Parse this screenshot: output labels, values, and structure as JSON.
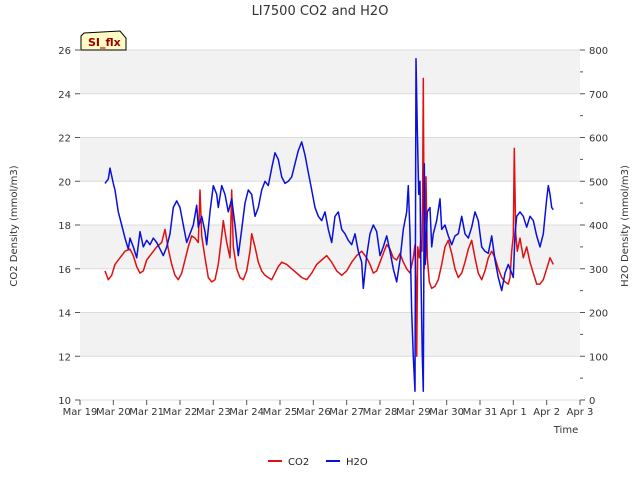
{
  "chart_data": {
    "type": "line",
    "title": "LI7500 CO2 and H2O",
    "xlabel": "Time",
    "ylabel_left": "CO2 Density (mmol/m3)",
    "ylabel_right": "H2O Density (mmol/m3)",
    "xlim": [
      0,
      15
    ],
    "ylim_left": [
      10,
      26
    ],
    "ylim_right": [
      0,
      800
    ],
    "x_ticks": [
      {
        "x": 0,
        "label": "Mar 19"
      },
      {
        "x": 1,
        "label": "Mar 20"
      },
      {
        "x": 2,
        "label": "Mar 21"
      },
      {
        "x": 3,
        "label": "Mar 22"
      },
      {
        "x": 4,
        "label": "Mar 23"
      },
      {
        "x": 5,
        "label": "Mar 24"
      },
      {
        "x": 6,
        "label": "Mar 25"
      },
      {
        "x": 7,
        "label": "Mar 26"
      },
      {
        "x": 8,
        "label": "Mar 27"
      },
      {
        "x": 9,
        "label": "Mar 28"
      },
      {
        "x": 10,
        "label": "Mar 29"
      },
      {
        "x": 11,
        "label": "Mar 30"
      },
      {
        "x": 12,
        "label": "Mar 31"
      },
      {
        "x": 13,
        "label": "Apr 1"
      },
      {
        "x": 14,
        "label": "Apr 2"
      },
      {
        "x": 15,
        "label": "Apr 3"
      }
    ],
    "y_ticks_left": [
      "10",
      "12",
      "14",
      "16",
      "18",
      "20",
      "22",
      "24",
      "26"
    ],
    "y_ticks_right": [
      "0",
      "100",
      "200",
      "300",
      "400",
      "500",
      "600",
      "700",
      "800"
    ],
    "grid": "horizontal bands",
    "legend_position": "bottom-center",
    "badge": "SI_flx",
    "series": [
      {
        "name": "CO2",
        "axis": "left",
        "color": "#e01010",
        "points": [
          [
            0.75,
            15.9
          ],
          [
            0.85,
            15.5
          ],
          [
            0.95,
            15.7
          ],
          [
            1.05,
            16.2
          ],
          [
            1.2,
            16.5
          ],
          [
            1.35,
            16.8
          ],
          [
            1.5,
            16.9
          ],
          [
            1.6,
            16.6
          ],
          [
            1.7,
            16.1
          ],
          [
            1.8,
            15.8
          ],
          [
            1.9,
            15.9
          ],
          [
            2.0,
            16.4
          ],
          [
            2.15,
            16.7
          ],
          [
            2.3,
            17.0
          ],
          [
            2.45,
            17.2
          ],
          [
            2.55,
            17.8
          ],
          [
            2.65,
            16.9
          ],
          [
            2.75,
            16.2
          ],
          [
            2.85,
            15.7
          ],
          [
            2.95,
            15.5
          ],
          [
            3.05,
            15.8
          ],
          [
            3.15,
            16.4
          ],
          [
            3.25,
            17.0
          ],
          [
            3.35,
            17.5
          ],
          [
            3.45,
            17.4
          ],
          [
            3.55,
            17.2
          ],
          [
            3.6,
            19.6
          ],
          [
            3.65,
            17.5
          ],
          [
            3.75,
            16.5
          ],
          [
            3.85,
            15.6
          ],
          [
            3.95,
            15.4
          ],
          [
            4.05,
            15.5
          ],
          [
            4.15,
            16.2
          ],
          [
            4.25,
            17.5
          ],
          [
            4.3,
            18.2
          ],
          [
            4.4,
            17.2
          ],
          [
            4.5,
            16.5
          ],
          [
            4.55,
            19.6
          ],
          [
            4.6,
            17.0
          ],
          [
            4.7,
            16.0
          ],
          [
            4.8,
            15.6
          ],
          [
            4.9,
            15.5
          ],
          [
            5.0,
            15.9
          ],
          [
            5.1,
            16.8
          ],
          [
            5.15,
            17.6
          ],
          [
            5.25,
            17.0
          ],
          [
            5.35,
            16.3
          ],
          [
            5.45,
            15.9
          ],
          [
            5.55,
            15.7
          ],
          [
            5.65,
            15.6
          ],
          [
            5.75,
            15.5
          ],
          [
            5.85,
            15.8
          ],
          [
            5.95,
            16.1
          ],
          [
            6.05,
            16.3
          ],
          [
            6.2,
            16.2
          ],
          [
            6.35,
            16.0
          ],
          [
            6.5,
            15.8
          ],
          [
            6.65,
            15.6
          ],
          [
            6.8,
            15.5
          ],
          [
            6.95,
            15.8
          ],
          [
            7.1,
            16.2
          ],
          [
            7.25,
            16.4
          ],
          [
            7.4,
            16.6
          ],
          [
            7.55,
            16.3
          ],
          [
            7.7,
            15.9
          ],
          [
            7.85,
            15.7
          ],
          [
            8.0,
            15.9
          ],
          [
            8.15,
            16.3
          ],
          [
            8.3,
            16.6
          ],
          [
            8.45,
            16.8
          ],
          [
            8.6,
            16.5
          ],
          [
            8.7,
            16.2
          ],
          [
            8.8,
            15.8
          ],
          [
            8.9,
            15.9
          ],
          [
            9.0,
            16.3
          ],
          [
            9.1,
            16.7
          ],
          [
            9.2,
            17.1
          ],
          [
            9.3,
            16.9
          ],
          [
            9.4,
            16.5
          ],
          [
            9.5,
            16.4
          ],
          [
            9.6,
            16.7
          ],
          [
            9.7,
            16.3
          ],
          [
            9.8,
            16.0
          ],
          [
            9.9,
            15.8
          ],
          [
            10.0,
            16.5
          ],
          [
            10.05,
            17.1
          ],
          [
            10.08,
            15.2
          ],
          [
            10.1,
            12.0
          ],
          [
            10.13,
            17.0
          ],
          [
            10.18,
            16.5
          ],
          [
            10.22,
            17.3
          ],
          [
            10.26,
            16.8
          ],
          [
            10.28,
            19.8
          ],
          [
            10.3,
            24.7
          ],
          [
            10.33,
            16.0
          ],
          [
            10.38,
            20.2
          ],
          [
            10.42,
            16.5
          ],
          [
            10.48,
            15.4
          ],
          [
            10.55,
            15.1
          ],
          [
            10.65,
            15.2
          ],
          [
            10.75,
            15.5
          ],
          [
            10.85,
            16.2
          ],
          [
            10.95,
            17.0
          ],
          [
            11.05,
            17.3
          ],
          [
            11.15,
            16.7
          ],
          [
            11.25,
            16.0
          ],
          [
            11.35,
            15.6
          ],
          [
            11.45,
            15.8
          ],
          [
            11.55,
            16.3
          ],
          [
            11.65,
            16.9
          ],
          [
            11.75,
            17.3
          ],
          [
            11.85,
            16.5
          ],
          [
            11.95,
            15.8
          ],
          [
            12.05,
            15.5
          ],
          [
            12.15,
            15.9
          ],
          [
            12.25,
            16.5
          ],
          [
            12.35,
            16.8
          ],
          [
            12.45,
            16.5
          ],
          [
            12.55,
            16.0
          ],
          [
            12.65,
            15.6
          ],
          [
            12.75,
            15.4
          ],
          [
            12.85,
            15.3
          ],
          [
            12.9,
            15.6
          ],
          [
            12.95,
            16.8
          ],
          [
            13.0,
            17.5
          ],
          [
            13.03,
            21.5
          ],
          [
            13.07,
            17.6
          ],
          [
            13.12,
            16.8
          ],
          [
            13.2,
            17.4
          ],
          [
            13.3,
            16.5
          ],
          [
            13.4,
            17.0
          ],
          [
            13.5,
            16.3
          ],
          [
            13.6,
            15.8
          ],
          [
            13.7,
            15.3
          ],
          [
            13.8,
            15.3
          ],
          [
            13.9,
            15.5
          ],
          [
            14.0,
            16.0
          ],
          [
            14.1,
            16.5
          ],
          [
            14.2,
            16.2
          ]
        ]
      },
      {
        "name": "H2O",
        "axis": "right",
        "color": "#0a10dc",
        "points": [
          [
            0.75,
            495
          ],
          [
            0.85,
            505
          ],
          [
            0.9,
            530
          ],
          [
            1.0,
            495
          ],
          [
            1.05,
            480
          ],
          [
            1.15,
            430
          ],
          [
            1.25,
            400
          ],
          [
            1.35,
            370
          ],
          [
            1.45,
            345
          ],
          [
            1.5,
            370
          ],
          [
            1.6,
            350
          ],
          [
            1.7,
            325
          ],
          [
            1.8,
            385
          ],
          [
            1.9,
            350
          ],
          [
            2.0,
            365
          ],
          [
            2.1,
            355
          ],
          [
            2.2,
            370
          ],
          [
            2.3,
            360
          ],
          [
            2.4,
            345
          ],
          [
            2.5,
            330
          ],
          [
            2.6,
            350
          ],
          [
            2.7,
            380
          ],
          [
            2.8,
            440
          ],
          [
            2.9,
            455
          ],
          [
            3.0,
            440
          ],
          [
            3.1,
            400
          ],
          [
            3.2,
            360
          ],
          [
            3.3,
            380
          ],
          [
            3.4,
            400
          ],
          [
            3.5,
            445
          ],
          [
            3.55,
            395
          ],
          [
            3.65,
            420
          ],
          [
            3.75,
            385
          ],
          [
            3.8,
            355
          ],
          [
            3.9,
            430
          ],
          [
            4.0,
            490
          ],
          [
            4.1,
            470
          ],
          [
            4.15,
            440
          ],
          [
            4.25,
            490
          ],
          [
            4.35,
            470
          ],
          [
            4.45,
            430
          ],
          [
            4.55,
            460
          ],
          [
            4.65,
            400
          ],
          [
            4.75,
            330
          ],
          [
            4.85,
            390
          ],
          [
            4.95,
            450
          ],
          [
            5.05,
            480
          ],
          [
            5.15,
            470
          ],
          [
            5.25,
            420
          ],
          [
            5.35,
            440
          ],
          [
            5.45,
            480
          ],
          [
            5.55,
            500
          ],
          [
            5.65,
            490
          ],
          [
            5.75,
            530
          ],
          [
            5.85,
            565
          ],
          [
            5.95,
            550
          ],
          [
            6.05,
            510
          ],
          [
            6.15,
            495
          ],
          [
            6.25,
            500
          ],
          [
            6.35,
            510
          ],
          [
            6.45,
            540
          ],
          [
            6.55,
            570
          ],
          [
            6.65,
            590
          ],
          [
            6.75,
            560
          ],
          [
            6.85,
            520
          ],
          [
            6.95,
            480
          ],
          [
            7.05,
            440
          ],
          [
            7.15,
            420
          ],
          [
            7.25,
            410
          ],
          [
            7.35,
            430
          ],
          [
            7.45,
            390
          ],
          [
            7.55,
            360
          ],
          [
            7.65,
            420
          ],
          [
            7.75,
            430
          ],
          [
            7.85,
            390
          ],
          [
            7.95,
            380
          ],
          [
            8.05,
            365
          ],
          [
            8.15,
            355
          ],
          [
            8.25,
            380
          ],
          [
            8.35,
            340
          ],
          [
            8.45,
            315
          ],
          [
            8.5,
            255
          ],
          [
            8.6,
            330
          ],
          [
            8.7,
            380
          ],
          [
            8.8,
            400
          ],
          [
            8.9,
            385
          ],
          [
            9.0,
            330
          ],
          [
            9.1,
            350
          ],
          [
            9.2,
            375
          ],
          [
            9.3,
            340
          ],
          [
            9.4,
            300
          ],
          [
            9.5,
            270
          ],
          [
            9.6,
            320
          ],
          [
            9.7,
            390
          ],
          [
            9.8,
            430
          ],
          [
            9.85,
            490
          ],
          [
            9.9,
            380
          ],
          [
            9.95,
            200
          ],
          [
            10.0,
            100
          ],
          [
            10.05,
            20
          ],
          [
            10.08,
            780
          ],
          [
            10.12,
            620
          ],
          [
            10.16,
            470
          ],
          [
            10.2,
            500
          ],
          [
            10.23,
            280
          ],
          [
            10.27,
            100
          ],
          [
            10.3,
            20
          ],
          [
            10.33,
            540
          ],
          [
            10.36,
            310
          ],
          [
            10.42,
            430
          ],
          [
            10.5,
            440
          ],
          [
            10.55,
            350
          ],
          [
            10.6,
            380
          ],
          [
            10.7,
            410
          ],
          [
            10.8,
            460
          ],
          [
            10.85,
            390
          ],
          [
            10.95,
            400
          ],
          [
            11.05,
            375
          ],
          [
            11.15,
            355
          ],
          [
            11.25,
            375
          ],
          [
            11.35,
            380
          ],
          [
            11.45,
            420
          ],
          [
            11.55,
            380
          ],
          [
            11.65,
            370
          ],
          [
            11.75,
            395
          ],
          [
            11.85,
            430
          ],
          [
            11.95,
            410
          ],
          [
            12.05,
            350
          ],
          [
            12.15,
            340
          ],
          [
            12.25,
            335
          ],
          [
            12.35,
            375
          ],
          [
            12.45,
            320
          ],
          [
            12.55,
            280
          ],
          [
            12.65,
            250
          ],
          [
            12.75,
            290
          ],
          [
            12.85,
            310
          ],
          [
            12.95,
            290
          ],
          [
            13.0,
            280
          ],
          [
            13.05,
            380
          ],
          [
            13.1,
            420
          ],
          [
            13.2,
            430
          ],
          [
            13.3,
            420
          ],
          [
            13.4,
            395
          ],
          [
            13.5,
            420
          ],
          [
            13.6,
            410
          ],
          [
            13.7,
            375
          ],
          [
            13.8,
            350
          ],
          [
            13.9,
            380
          ],
          [
            14.0,
            460
          ],
          [
            14.05,
            490
          ],
          [
            14.1,
            470
          ],
          [
            14.15,
            440
          ],
          [
            14.2,
            435
          ]
        ]
      }
    ]
  }
}
